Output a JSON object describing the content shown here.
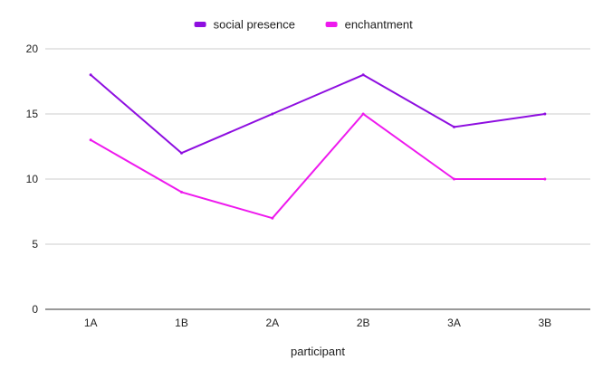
{
  "chart_data": {
    "type": "line",
    "categories": [
      "1A",
      "1B",
      "2A",
      "2B",
      "3A",
      "3B"
    ],
    "series": [
      {
        "name": "social presence",
        "color": "#8e0ee0",
        "values": [
          18,
          12,
          15,
          18,
          14,
          15
        ]
      },
      {
        "name": "enchantment",
        "color": "#ee19ee",
        "values": [
          13,
          9,
          7,
          15,
          10,
          10
        ]
      }
    ],
    "title": "",
    "xlabel": "participant",
    "ylabel": "",
    "ylim": [
      0,
      20
    ],
    "yticks": [
      "0",
      "5",
      "10",
      "15",
      "20"
    ],
    "grid": true,
    "legend": "top-center"
  }
}
